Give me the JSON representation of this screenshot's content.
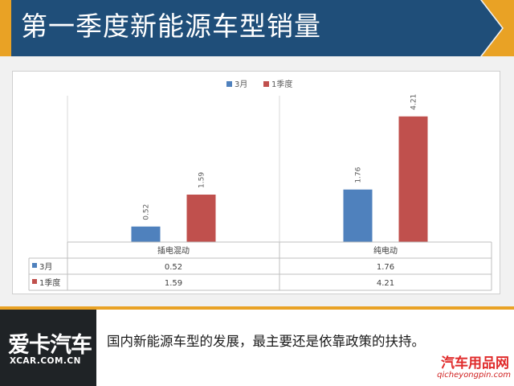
{
  "header": {
    "title": "第一季度新能源车型销量",
    "colors": {
      "band": "#1f4e79",
      "accent": "#e9a225"
    }
  },
  "chart_data": {
    "type": "bar",
    "categories": [
      "插电混动",
      "纯电动"
    ],
    "series": [
      {
        "name": "3月",
        "values": [
          0.52,
          1.76
        ],
        "color": "#4f81bd"
      },
      {
        "name": "1季度",
        "values": [
          1.59,
          4.21
        ],
        "color": "#c0504d"
      }
    ],
    "data_labels": [
      [
        "0.52",
        "1.76"
      ],
      [
        "1.59",
        "4.21"
      ]
    ],
    "title": "",
    "xlabel": "",
    "ylabel": "",
    "ylim": [
      0,
      4.5
    ],
    "legend": "top-center",
    "grid": false,
    "data_table": true
  },
  "footer": {
    "logo_main": "爱卡汽车",
    "logo_sub": "XCAR.COM.CN",
    "text": "国内新能源车型的发展，最主要还是依靠政策的扶持。",
    "watermark_main": "汽车用品网",
    "watermark_sub": "qicheyongpin.com"
  }
}
